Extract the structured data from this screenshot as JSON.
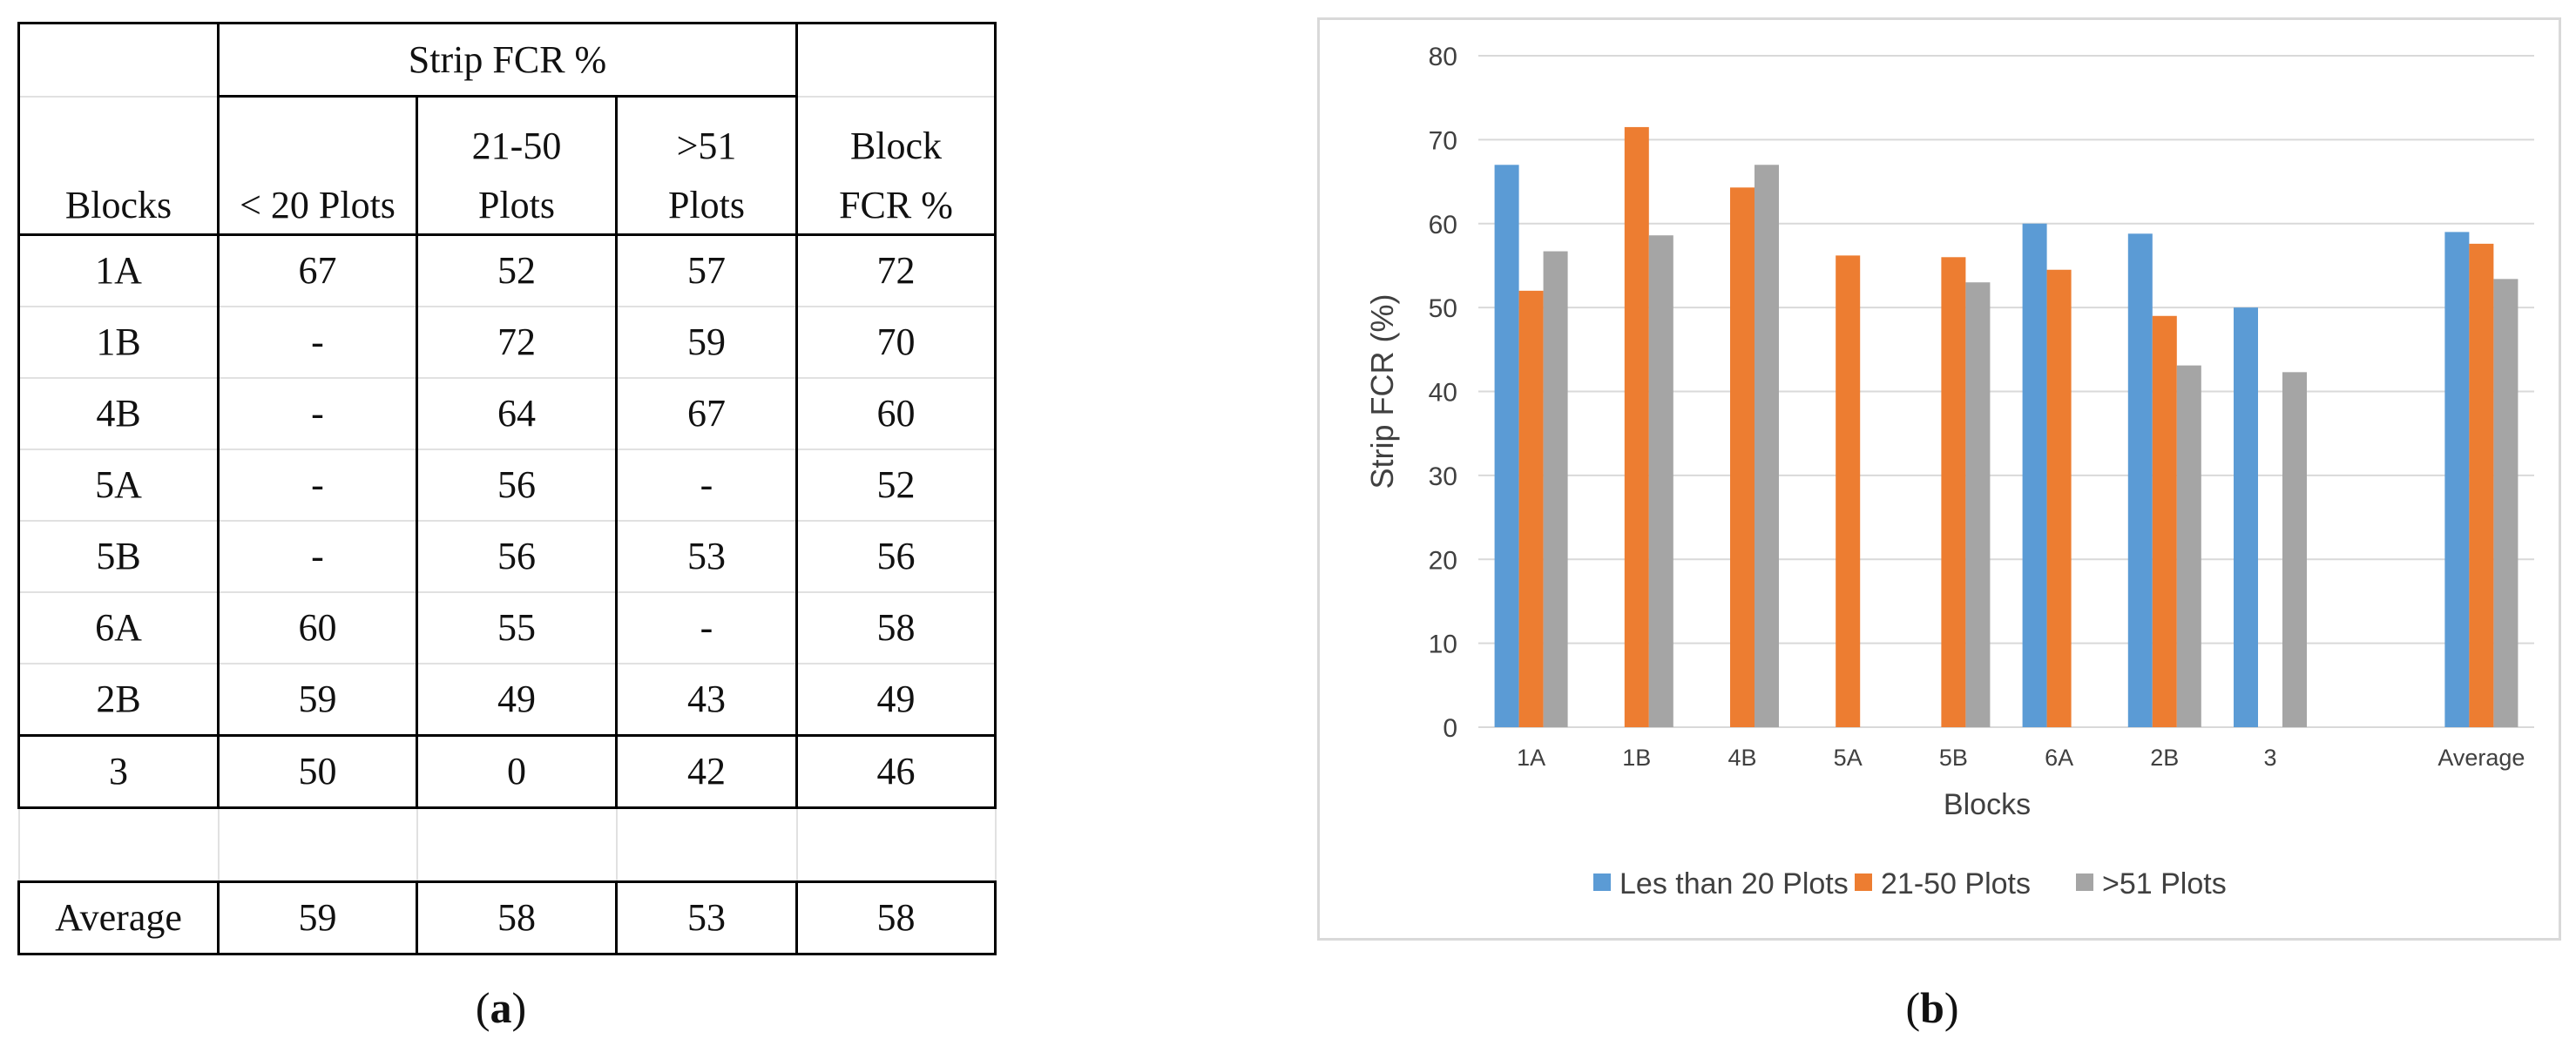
{
  "table_a": {
    "header_group": "Strip FCR %",
    "col_blocks": "Blocks",
    "col_lt20": [
      "< 20 Plots"
    ],
    "col_21_50": [
      "21-50",
      "Plots"
    ],
    "col_gt51": [
      ">51",
      "Plots"
    ],
    "col_block_fcr": [
      "Block",
      "FCR %"
    ],
    "rows": [
      {
        "block": "1A",
        "lt20": "67",
        "mid": "52",
        "gt51": "57",
        "block_fcr": "72"
      },
      {
        "block": "1B",
        "lt20": "-",
        "mid": "72",
        "gt51": "59",
        "block_fcr": "70"
      },
      {
        "block": "4B",
        "lt20": "-",
        "mid": "64",
        "gt51": "67",
        "block_fcr": "60"
      },
      {
        "block": "5A",
        "lt20": "-",
        "mid": "56",
        "gt51": "-",
        "block_fcr": "52"
      },
      {
        "block": "5B",
        "lt20": "-",
        "mid": "56",
        "gt51": "53",
        "block_fcr": "56"
      },
      {
        "block": "6A",
        "lt20": "60",
        "mid": "55",
        "gt51": "-",
        "block_fcr": "58"
      },
      {
        "block": "2B",
        "lt20": "59",
        "mid": "49",
        "gt51": "43",
        "block_fcr": "49"
      },
      {
        "block": "3",
        "lt20": "50",
        "mid": "0",
        "gt51": "42",
        "block_fcr": "46"
      }
    ],
    "average": {
      "block": "Average",
      "lt20": "59",
      "mid": "58",
      "gt51": "53",
      "block_fcr": "58"
    }
  },
  "panel_labels": {
    "a": "a",
    "b": "b"
  },
  "chart_data": {
    "type": "bar",
    "categories": [
      "1A",
      "1B",
      "4B",
      "5A",
      "5B",
      "6A",
      "2B",
      "3",
      "",
      "Average"
    ],
    "series": [
      {
        "name": "Les than 20 Plots",
        "color": "#5b9bd5",
        "values": [
          67,
          null,
          null,
          null,
          null,
          60,
          58.8,
          50,
          null,
          59
        ]
      },
      {
        "name": "21-50 Plots",
        "color": "#ed7d31",
        "values": [
          52,
          71.5,
          64.3,
          56.2,
          56,
          54.5,
          49,
          null,
          null,
          57.6
        ]
      },
      {
        "name": ">51 Plots",
        "color": "#a5a5a5",
        "values": [
          56.7,
          58.6,
          67,
          null,
          53,
          null,
          43.1,
          42.3,
          null,
          53.4
        ]
      }
    ],
    "xlabel": "Blocks",
    "ylabel": "Strip FCR (%)",
    "ylim": [
      0,
      80
    ],
    "yticks": [
      0,
      10,
      20,
      30,
      40,
      50,
      60,
      70,
      80
    ],
    "grid": true,
    "legend_position": "bottom"
  }
}
